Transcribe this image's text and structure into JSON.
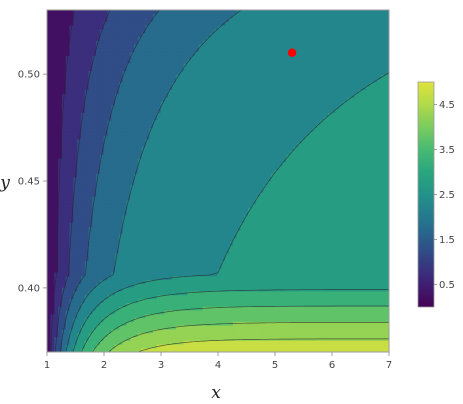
{
  "chart_data": {
    "type": "heatmap",
    "subtype": "contour",
    "title": "",
    "xlabel": "x",
    "ylabel": "y",
    "xlim": [
      1,
      7
    ],
    "ylim": [
      0.37,
      0.53
    ],
    "x_ticks": [
      1,
      2,
      3,
      4,
      5,
      6,
      7
    ],
    "y_ticks": [
      0.4,
      0.45,
      0.5
    ],
    "x_tick_labels": [
      "1",
      "2",
      "3",
      "4",
      "5",
      "6",
      "7"
    ],
    "y_tick_labels": [
      "0.40",
      "0.45",
      "0.50"
    ],
    "colorbar": {
      "range": [
        0,
        5
      ],
      "ticks": [
        0.5,
        1.5,
        2.5,
        3.5,
        4.5
      ],
      "tick_labels": [
        "0.5",
        "1.5",
        "2.5",
        "3.5",
        "4.5"
      ],
      "colormap": "viridis"
    },
    "contour_levels": [
      0.5,
      1.0,
      1.5,
      2.0,
      2.5,
      3.0,
      3.5,
      4.0,
      4.5
    ],
    "marked_point": {
      "x": 5.3,
      "y": 0.51,
      "color": "#ff0000"
    },
    "grid": false,
    "legend": "colorbar right"
  }
}
